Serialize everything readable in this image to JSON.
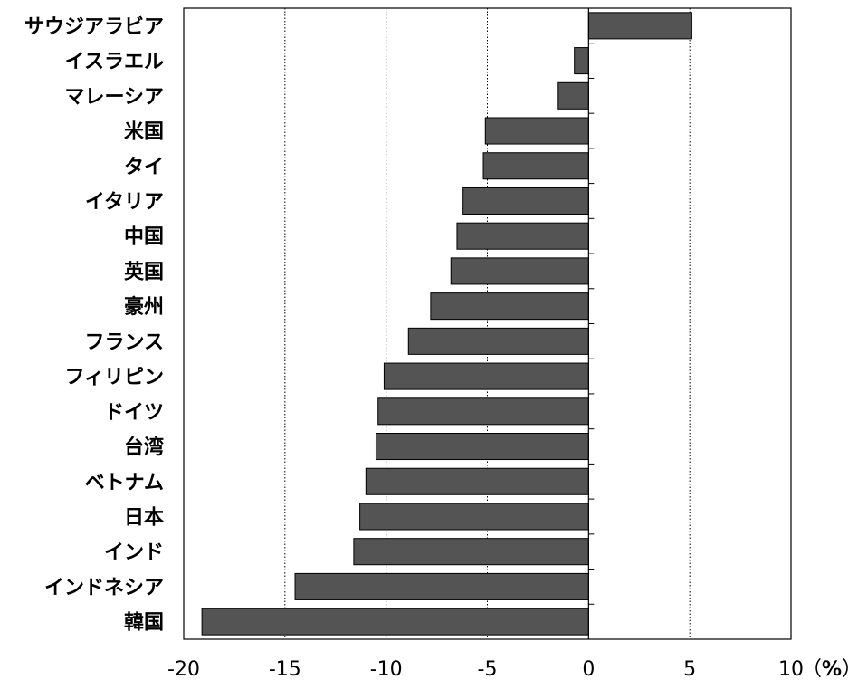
{
  "chart_data": {
    "type": "bar",
    "orientation": "horizontal",
    "categories": [
      "サウジアラビア",
      "イスラエル",
      "マレーシア",
      "米国",
      "タイ",
      "イタリア",
      "中国",
      "英国",
      "豪州",
      "フランス",
      "フィリピン",
      "ドイツ",
      "台湾",
      "ベトナム",
      "日本",
      "インド",
      "インドネシア",
      "韓国"
    ],
    "values": [
      5.1,
      -0.7,
      -1.5,
      -5.1,
      -5.2,
      -6.2,
      -6.5,
      -6.8,
      -7.8,
      -8.9,
      -10.1,
      -10.4,
      -10.5,
      -11.0,
      -11.3,
      -11.6,
      -14.5,
      -19.1
    ],
    "xlim": [
      -20,
      10
    ],
    "xticks": [
      "-20",
      "-15",
      "-10",
      "-5",
      "0",
      "5",
      "10"
    ],
    "unit_paren_open": "（",
    "unit_symbol": "%",
    "unit_paren_close": "）",
    "grid": "vertical-dotted",
    "bar_color": "#545454"
  }
}
